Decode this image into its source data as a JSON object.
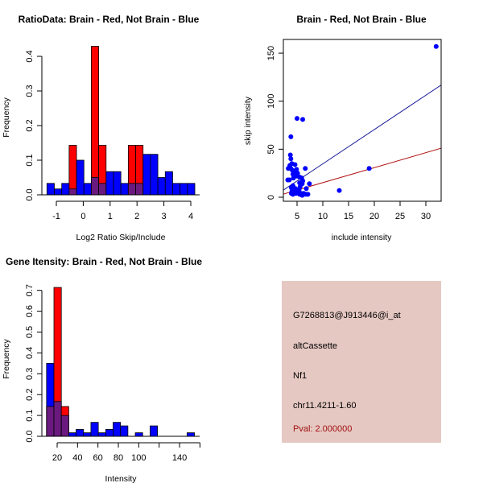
{
  "colors": {
    "red": "#ff0000",
    "blue": "#0000ff",
    "overlap": "#6a1a7e",
    "panel": "#e6c8c2",
    "blue_line": "#1a1a9a",
    "red_line": "#b01010",
    "pval": "#a01010"
  },
  "chart_data": [
    {
      "type": "bar",
      "title": "RatioData: Brain - Red, Not Brain - Blue",
      "xlabel": "Log2 Ratio Skip/Include",
      "ylabel": "Frequency",
      "bin_start": -1.35,
      "bin_width": 0.275,
      "series": [
        {
          "name": "Not Brain",
          "color": "blue",
          "values": [
            0.033,
            0.017,
            0.033,
            0.017,
            0.1,
            0.033,
            0.05,
            0.033,
            0.067,
            0.067,
            0.033,
            0.033,
            0.033,
            0.117,
            0.117,
            0.05,
            0.067,
            0.033,
            0.033,
            0.033
          ]
        },
        {
          "name": "Brain",
          "color": "red",
          "values": [
            0,
            0,
            0,
            0.143,
            0,
            0,
            0.429,
            0.143,
            0,
            0,
            0,
            0.143,
            0.143,
            0,
            0,
            0,
            0,
            0,
            0,
            0
          ]
        }
      ],
      "xticks": [
        "-1",
        "0",
        "1",
        "2",
        "3",
        "4"
      ],
      "yticks": [
        "0.0",
        "0.1",
        "0.2",
        "0.3",
        "0.4"
      ],
      "xlim": [
        -1,
        4
      ],
      "ylim": [
        0,
        0.4
      ]
    },
    {
      "type": "scatter",
      "title": "Brain - Red, Not Brain - Blue",
      "xlabel": "include intensity",
      "ylabel": "skip intensity",
      "xticks": [
        "5",
        "10",
        "15",
        "20",
        "25",
        "30"
      ],
      "yticks": [
        "0",
        "50",
        "100",
        "150"
      ],
      "xlim": [
        2.2,
        33
      ],
      "ylim": [
        -5,
        163
      ],
      "points": [
        [
          5,
          82
        ],
        [
          6.1,
          81
        ],
        [
          3.8,
          63
        ],
        [
          3.7,
          44
        ],
        [
          3.8,
          40
        ],
        [
          4,
          35
        ],
        [
          3.6,
          33
        ],
        [
          3.8,
          30
        ],
        [
          3.3,
          30
        ],
        [
          4.1,
          28
        ],
        [
          4.6,
          34
        ],
        [
          4.9,
          29
        ],
        [
          6.6,
          30
        ],
        [
          4.2,
          24
        ],
        [
          4.6,
          26
        ],
        [
          5.1,
          25
        ],
        [
          3.2,
          18
        ],
        [
          3.5,
          18
        ],
        [
          4.3,
          20
        ],
        [
          5,
          22
        ],
        [
          5.5,
          21
        ],
        [
          5.9,
          20
        ],
        [
          6.1,
          17
        ],
        [
          5.5,
          15
        ],
        [
          7.4,
          14
        ],
        [
          6,
          14
        ],
        [
          4.2,
          12
        ],
        [
          3.9,
          10
        ],
        [
          5.6,
          11
        ],
        [
          6.8,
          9
        ],
        [
          4,
          6
        ],
        [
          4.5,
          6
        ],
        [
          5,
          7
        ],
        [
          5.3,
          5
        ],
        [
          5.8,
          4
        ],
        [
          6.3,
          4
        ],
        [
          6.7,
          3
        ],
        [
          7.1,
          3
        ],
        [
          4.2,
          3
        ],
        [
          5.5,
          3
        ],
        [
          6,
          2
        ],
        [
          4.8,
          4
        ],
        [
          5.4,
          8
        ],
        [
          4.7,
          9
        ],
        [
          3.9,
          4
        ],
        [
          13.2,
          7
        ],
        [
          19,
          30
        ],
        [
          32,
          157
        ]
      ],
      "lines": [
        {
          "name": "Not Brain fit",
          "color": "blue_line",
          "slope": 3.57,
          "intercept": -0.9
        },
        {
          "name": "Brain fit",
          "color": "red_line",
          "slope": 1.56,
          "intercept": -0.4
        }
      ]
    },
    {
      "type": "bar",
      "title": "Gene Itensity: Brain - Red, Not Brain - Blue",
      "xlabel": "Intensity",
      "ylabel": "Frequency",
      "bin_start": 9.6,
      "bin_width": 7.25,
      "series": [
        {
          "name": "Not Brain",
          "color": "blue",
          "values": [
            0.35,
            0.167,
            0.1,
            0.017,
            0.033,
            0.017,
            0.067,
            0.017,
            0.033,
            0.067,
            0.05,
            0,
            0.017,
            0,
            0.05,
            0,
            0,
            0,
            0,
            0.017
          ]
        },
        {
          "name": "Brain",
          "color": "red",
          "values": [
            0.143,
            0.714,
            0.143,
            0,
            0,
            0,
            0,
            0,
            0,
            0,
            0,
            0,
            0,
            0,
            0,
            0,
            0,
            0,
            0,
            0
          ]
        }
      ],
      "xticks": [
        "20",
        "40",
        "60",
        "80",
        "100",
        "120",
        "140",
        "160"
      ],
      "xtick_labels": [
        "20",
        "40",
        "60",
        "80",
        "100",
        "",
        "140",
        ""
      ],
      "yticks": [
        "0.0",
        "0.1",
        "0.2",
        "0.3",
        "0.4",
        "0.5",
        "0.6",
        "0.7"
      ],
      "xlim": [
        20,
        160
      ],
      "ylim": [
        0,
        0.7
      ]
    }
  ],
  "info": {
    "probe": "G7268813@J913446@i_at",
    "type": "altCassette",
    "gene": "Nf1",
    "location": "chr11.4211-1.60",
    "pval": "Pval: 2.000000"
  }
}
